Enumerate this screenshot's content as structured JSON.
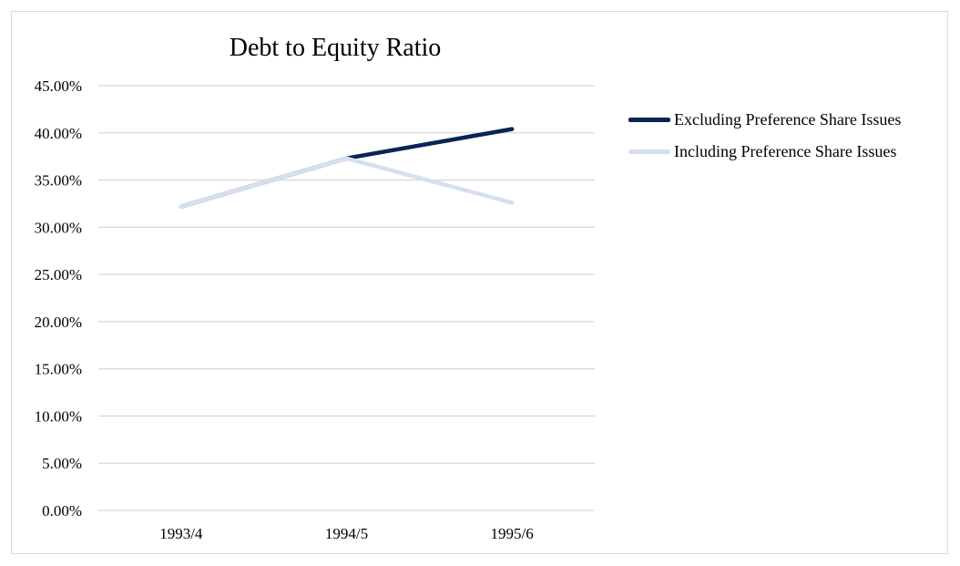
{
  "chart_data": {
    "type": "line",
    "title": "Debt to Equity Ratio",
    "xlabel": "",
    "ylabel": "",
    "categories": [
      "1993/4",
      "1994/5",
      "1995/6"
    ],
    "y_ticks": [
      "0.00%",
      "5.00%",
      "10.00%",
      "15.00%",
      "20.00%",
      "25.00%",
      "30.00%",
      "35.00%",
      "40.00%",
      "45.00%"
    ],
    "ylim": [
      0,
      45
    ],
    "y_unit": "%",
    "grid": "horizontal",
    "legend_position": "right",
    "series": [
      {
        "name": "Excluding Preference Share Issues",
        "color": "#0b2357",
        "values": [
          32.2,
          37.3,
          40.4
        ]
      },
      {
        "name": "Including Preference Share Issues",
        "color": "#d6e0f0",
        "values": [
          32.2,
          37.3,
          32.6
        ]
      }
    ]
  }
}
